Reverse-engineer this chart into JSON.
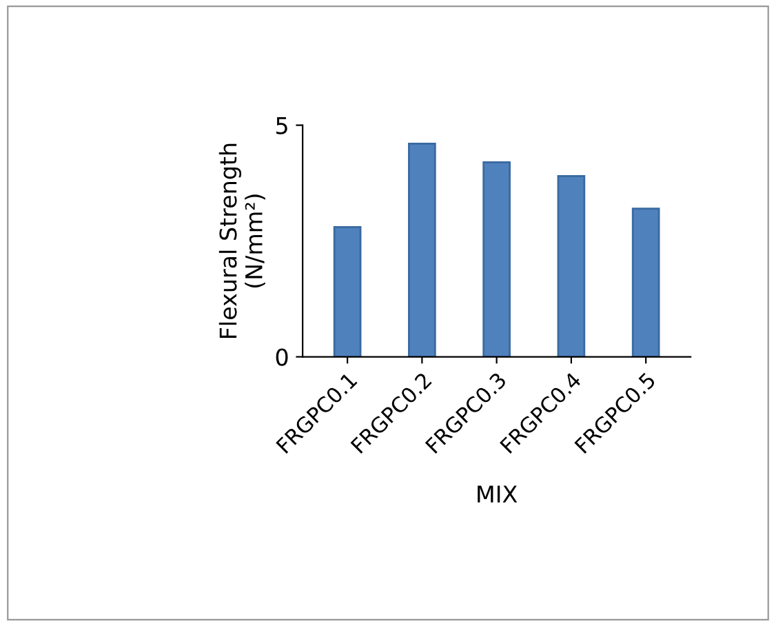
{
  "chart_data": {
    "type": "bar",
    "xlabel": "MIX",
    "ylabel": "Flexural Strength\n(N/mm²)",
    "categories": [
      "FRGPC0.1",
      "FRGPC0.2",
      "FRGPC0.3",
      "FRGPC0.4",
      "FRGPC0.5"
    ],
    "values": [
      2.8,
      4.6,
      4.2,
      3.9,
      3.2
    ],
    "color": "#4f81bd",
    "ylim": [
      0,
      5
    ],
    "yticks": [
      0,
      5
    ],
    "grid": false
  }
}
